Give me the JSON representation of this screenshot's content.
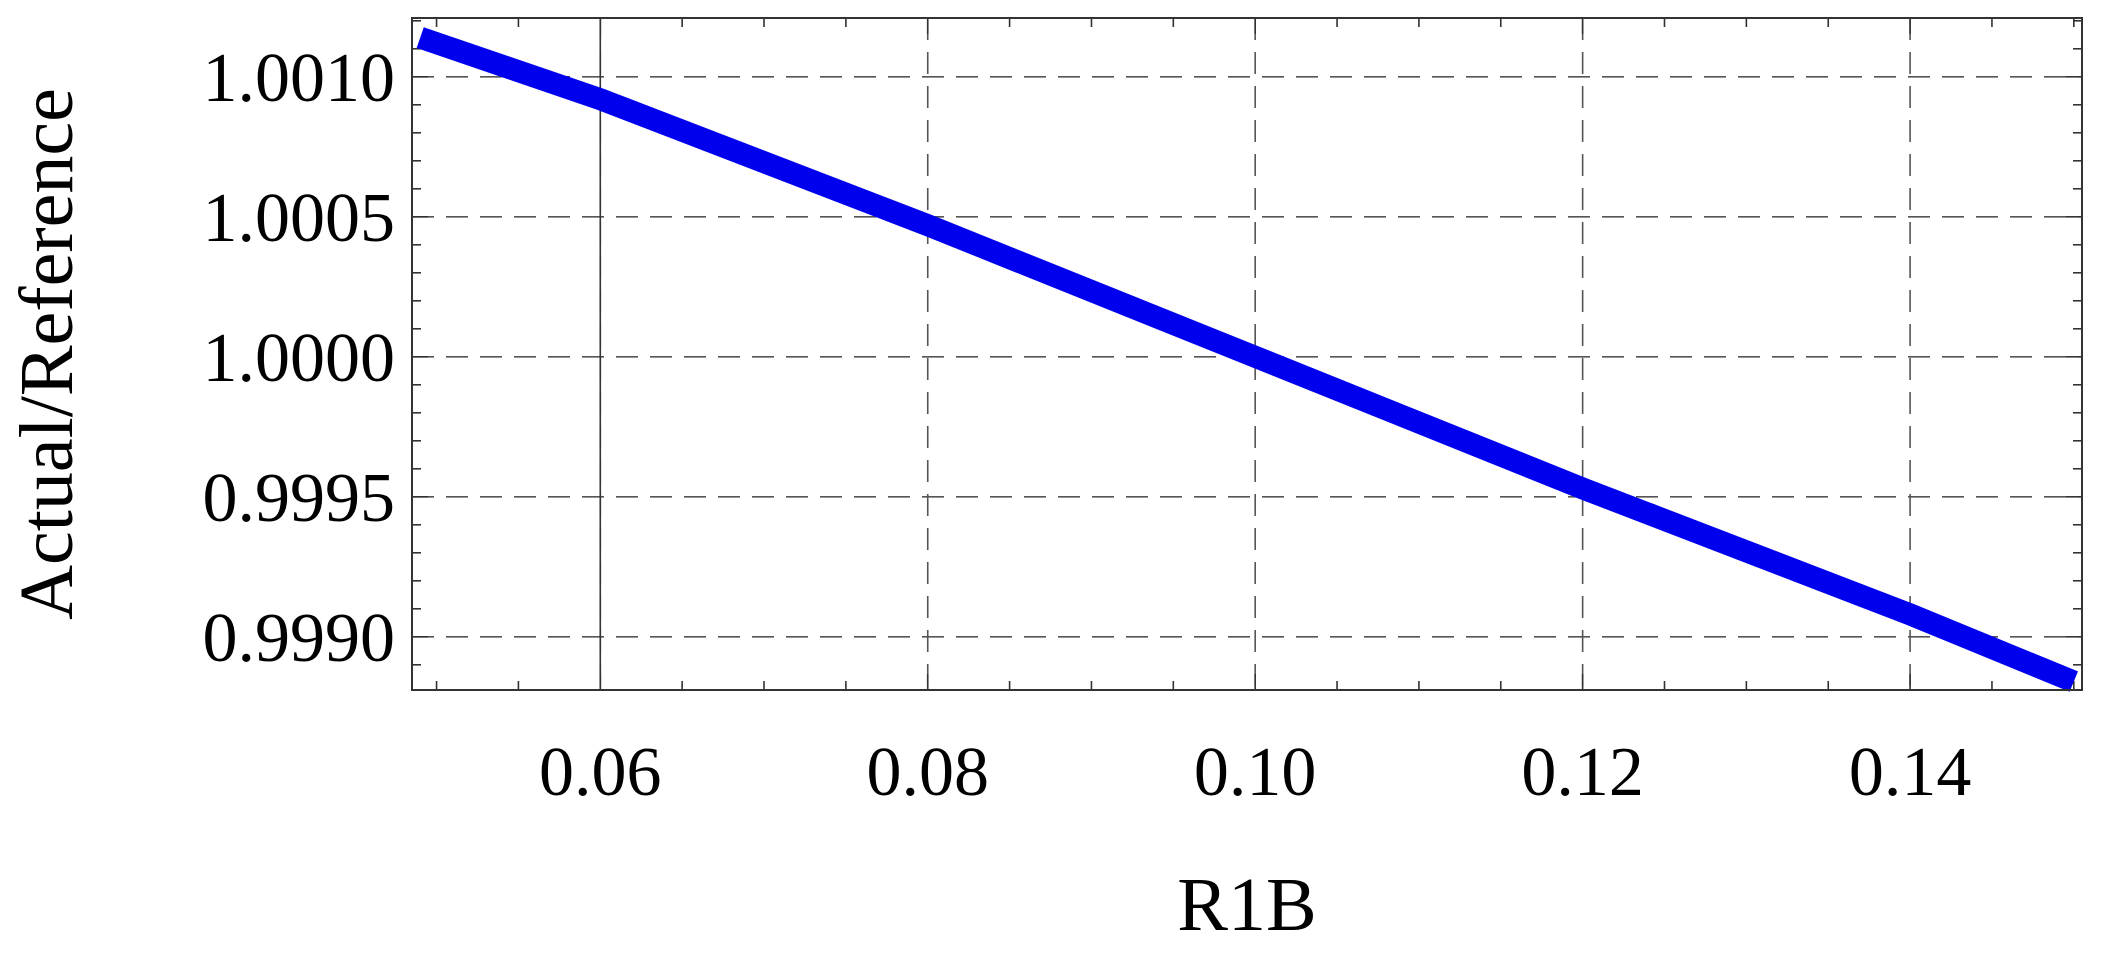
{
  "chart_data": {
    "type": "line",
    "title": "",
    "xlabel": "R1B",
    "ylabel": "Actual/Reference",
    "xlim": [
      0.0485,
      0.1505
    ],
    "ylim": [
      0.99881,
      1.00121
    ],
    "x_ticks": [
      {
        "value": 0.06,
        "label": "0.06"
      },
      {
        "value": 0.08,
        "label": "0.08"
      },
      {
        "value": 0.1,
        "label": "0.10"
      },
      {
        "value": 0.12,
        "label": "0.12"
      },
      {
        "value": 0.14,
        "label": "0.14"
      }
    ],
    "y_ticks": [
      {
        "value": 0.999,
        "label": "0.9990"
      },
      {
        "value": 0.9995,
        "label": "0.9995"
      },
      {
        "value": 1.0,
        "label": "1.0000"
      },
      {
        "value": 1.0005,
        "label": "1.0005"
      },
      {
        "value": 1.001,
        "label": "1.0010"
      }
    ],
    "x_minor_step": 0.005,
    "y_minor_step": 0.0001,
    "grid": true,
    "reference_line_x": 0.06,
    "series": [
      {
        "color": "#0000ee",
        "x": [
          0.049,
          0.06,
          0.08,
          0.1,
          0.12,
          0.14,
          0.15
        ],
        "y": [
          1.00114,
          1.00092,
          1.00047,
          1.0,
          0.99953,
          0.99908,
          0.99884
        ]
      }
    ]
  }
}
